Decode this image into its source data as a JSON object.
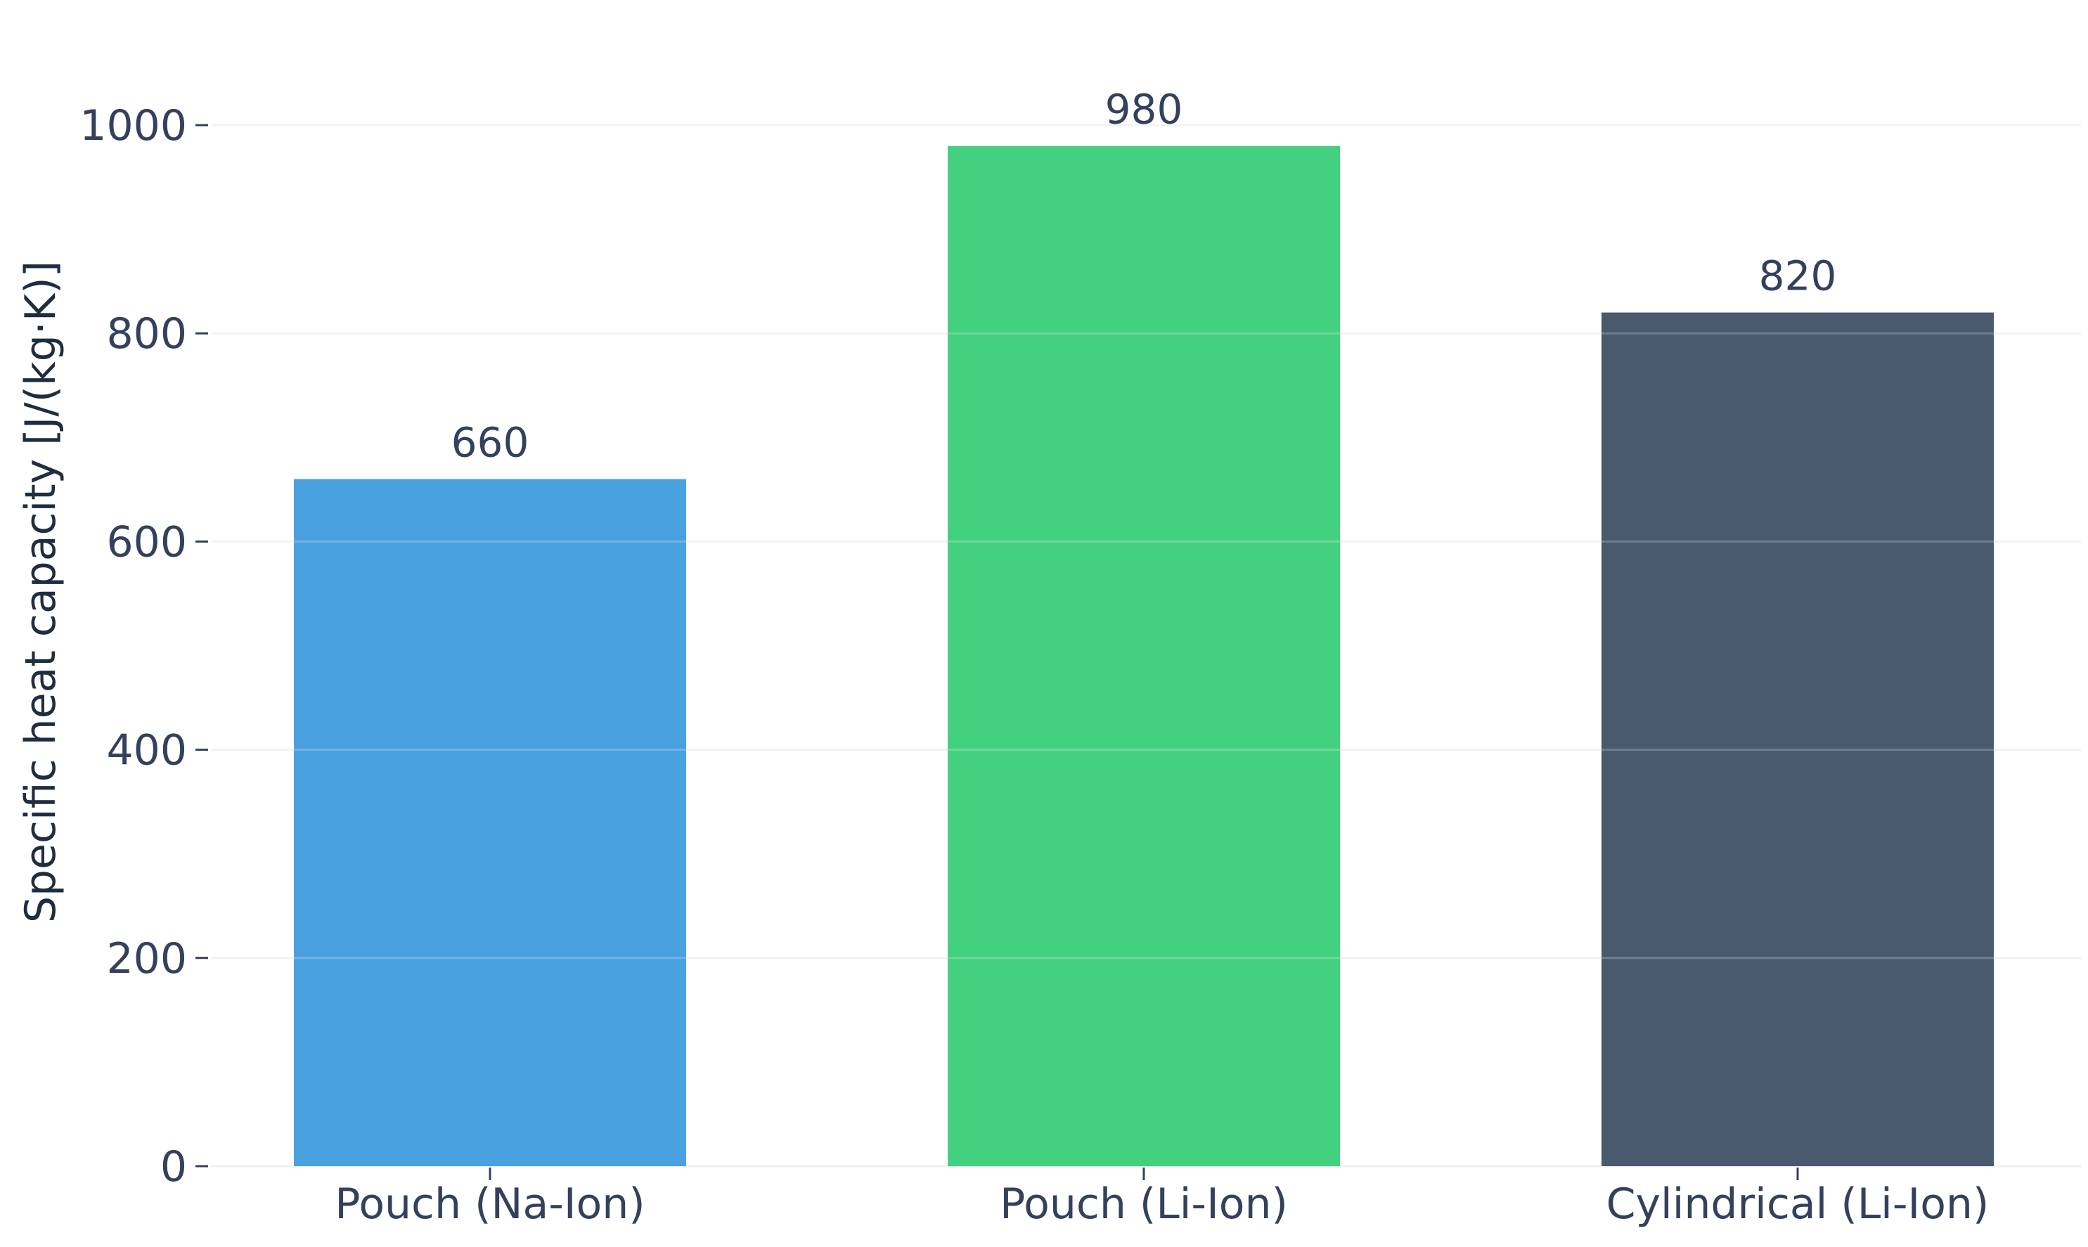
{
  "chart_data": {
    "type": "bar",
    "title": "",
    "xlabel": "",
    "ylabel": "Specific heat capacity [J/(kg·K)]",
    "categories": [
      "Pouch (Na-Ion)",
      "Pouch (Li-Ion)",
      "Cylindrical (Li-Ion)"
    ],
    "values": [
      660,
      980,
      820
    ],
    "value_labels": [
      "660",
      "980",
      "820"
    ],
    "colors": [
      "#4aa1df",
      "#43d07f",
      "#495a6e"
    ],
    "ylim": [
      0,
      1000
    ],
    "yticks": [
      0,
      200,
      400,
      600,
      800,
      1000
    ],
    "ytick_labels": [
      "0",
      "200",
      "400",
      "600",
      "800",
      "1000"
    ],
    "grid": "horizontal",
    "legend": "none"
  }
}
